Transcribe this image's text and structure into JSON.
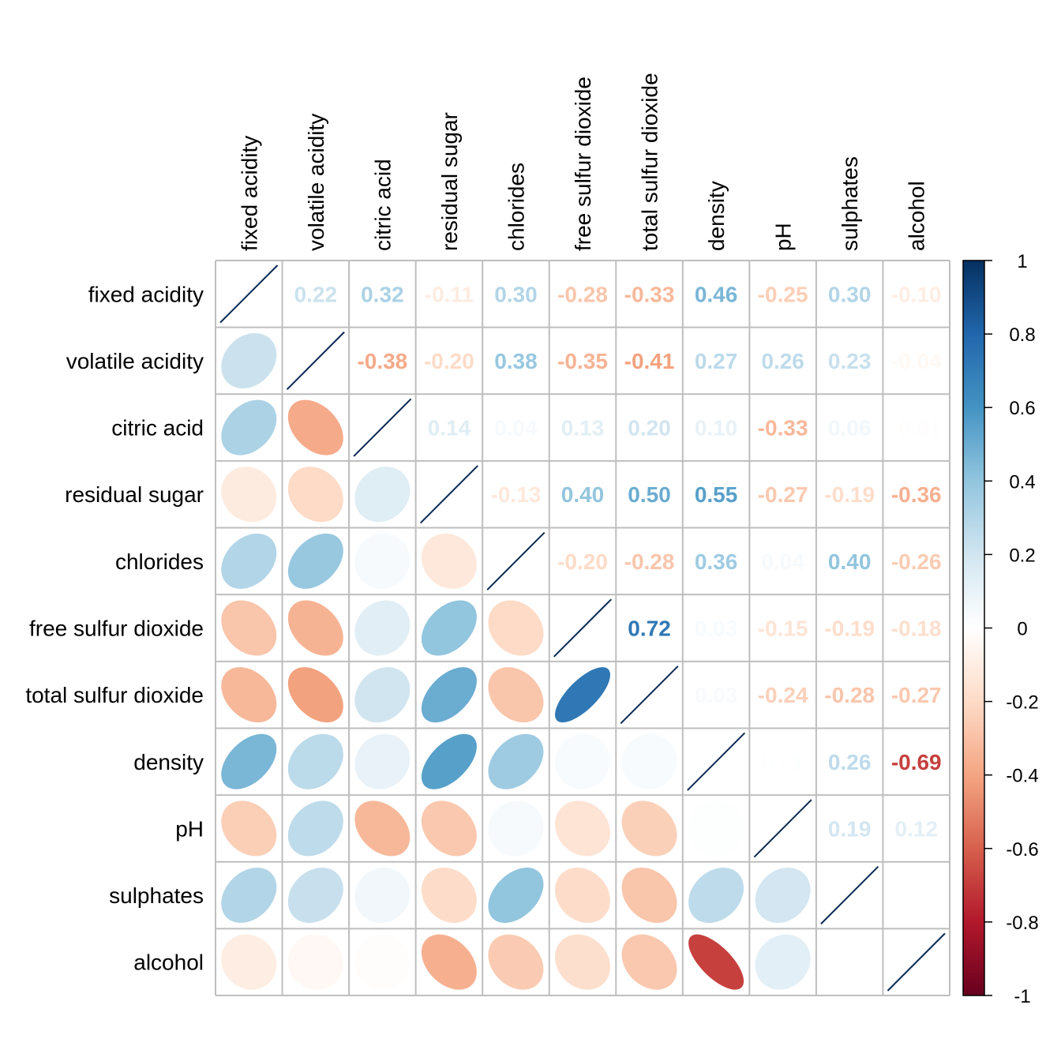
{
  "chart_data": {
    "type": "heatmap",
    "subtype": "correlation-matrix (lower: ellipse, upper: number, diagonal: line)",
    "title": "",
    "variables": [
      "fixed acidity",
      "volatile acidity",
      "citric acid",
      "residual sugar",
      "chlorides",
      "free sulfur dioxide",
      "total sulfur dioxide",
      "density",
      "pH",
      "sulphates",
      "alcohol"
    ],
    "matrix": [
      [
        1.0,
        0.22,
        0.32,
        -0.11,
        0.3,
        -0.28,
        -0.33,
        0.46,
        -0.25,
        0.3,
        -0.1
      ],
      [
        0.22,
        1.0,
        -0.38,
        -0.2,
        0.38,
        -0.35,
        -0.41,
        0.27,
        0.26,
        0.23,
        -0.04
      ],
      [
        0.32,
        -0.38,
        1.0,
        0.14,
        0.04,
        0.13,
        0.2,
        0.1,
        -0.33,
        0.06,
        -0.01
      ],
      [
        -0.11,
        -0.2,
        0.14,
        1.0,
        -0.13,
        0.4,
        0.5,
        0.55,
        -0.27,
        -0.19,
        -0.36
      ],
      [
        0.3,
        0.38,
        0.04,
        -0.13,
        1.0,
        -0.2,
        -0.28,
        0.36,
        0.04,
        0.4,
        -0.26
      ],
      [
        -0.28,
        -0.35,
        0.13,
        0.4,
        -0.2,
        1.0,
        0.72,
        0.03,
        -0.15,
        -0.19,
        -0.18
      ],
      [
        -0.33,
        -0.41,
        0.2,
        0.5,
        -0.28,
        0.72,
        1.0,
        0.03,
        -0.24,
        -0.28,
        -0.27
      ],
      [
        0.46,
        0.27,
        0.1,
        0.55,
        0.36,
        0.03,
        0.03,
        1.0,
        0.01,
        0.26,
        -0.69
      ],
      [
        -0.25,
        0.26,
        -0.33,
        -0.27,
        0.04,
        -0.15,
        -0.24,
        0.01,
        1.0,
        0.19,
        0.12
      ],
      [
        0.3,
        0.23,
        0.06,
        -0.19,
        0.4,
        -0.19,
        -0.28,
        0.26,
        0.19,
        1.0,
        0.0
      ],
      [
        -0.1,
        -0.04,
        -0.01,
        -0.36,
        -0.26,
        -0.18,
        -0.27,
        -0.69,
        0.12,
        0.0,
        1.0
      ]
    ],
    "colorbar": {
      "range": [
        -1,
        1
      ],
      "ticks": [
        "1",
        "0.8",
        "0.6",
        "0.4",
        "0.2",
        "0",
        "-0.2",
        "-0.4",
        "-0.6",
        "-0.8",
        "-1"
      ],
      "tick_values": [
        1,
        0.8,
        0.6,
        0.4,
        0.2,
        0,
        -0.2,
        -0.4,
        -0.6,
        -0.8,
        -1
      ],
      "placement": "right"
    },
    "palette": [
      "#67001F",
      "#B2182B",
      "#D6604D",
      "#F4A582",
      "#FDDBC7",
      "#FFFFFF",
      "#D1E5F0",
      "#92C5DE",
      "#4393C3",
      "#2166AC",
      "#053061"
    ],
    "grid_color": "#BEBEBE",
    "diagonal_line_color": "#0A2A55"
  }
}
